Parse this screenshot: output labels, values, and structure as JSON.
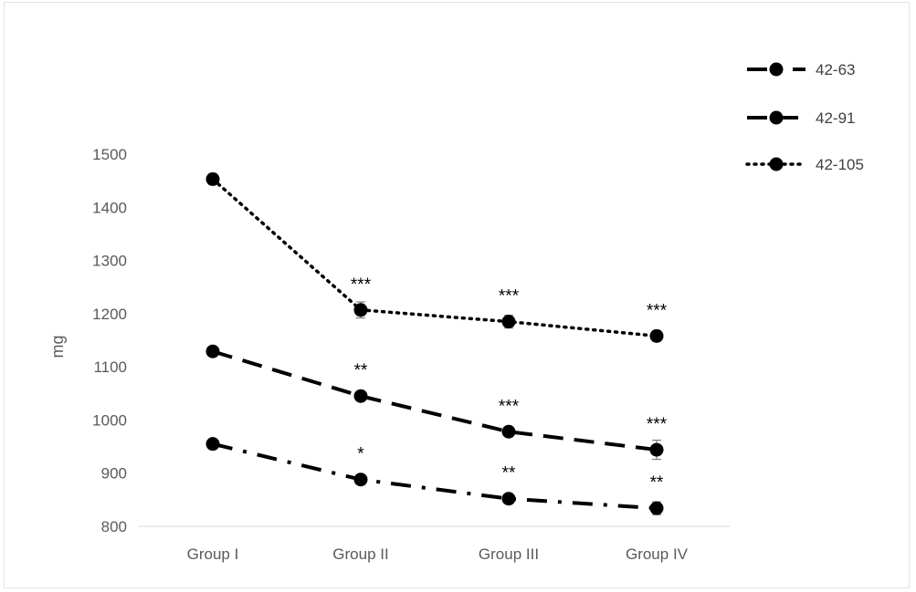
{
  "chart_data": {
    "type": "line",
    "xlabel": "",
    "ylabel": "mg",
    "categories": [
      "Group I",
      "Group II",
      "Group III",
      "Group IV"
    ],
    "ylim": [
      800,
      1500
    ],
    "yticks": [
      800,
      900,
      1000,
      1100,
      1200,
      1300,
      1400,
      1500
    ],
    "grid": false,
    "legend_position": "top-right",
    "series": [
      {
        "name": "42-63",
        "style": "dash-dot",
        "values": [
          955,
          888,
          852,
          834
        ],
        "errors": [
          5,
          6,
          6,
          12
        ],
        "significance": [
          "",
          "*",
          "**",
          "**"
        ]
      },
      {
        "name": "42-91",
        "style": "dashed",
        "values": [
          1129,
          1045,
          978,
          944
        ],
        "errors": [
          5,
          6,
          7,
          18
        ],
        "significance": [
          "",
          "**",
          "***",
          "***"
        ]
      },
      {
        "name": "42-105",
        "style": "dotted",
        "values": [
          1453,
          1207,
          1185,
          1158
        ],
        "errors": [
          10,
          15,
          12,
          10
        ],
        "significance": [
          "",
          "***",
          "***",
          "***"
        ]
      }
    ],
    "colors": {
      "line": "#000000",
      "axis": "#d9d9d9",
      "text": "#595959"
    }
  }
}
